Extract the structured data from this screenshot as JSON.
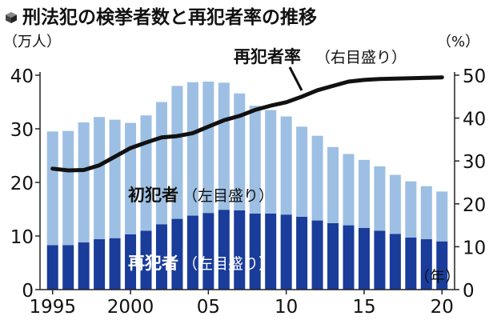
{
  "title": "刑法犯の検挙者数と再犯者率の推移",
  "chart_data": {
    "type": "bar",
    "title": "刑法犯の検挙者数と再犯者率の推移",
    "left_unit": "（万人）",
    "right_unit": "（%）",
    "x_unit": "（年）",
    "x": [
      1995,
      1996,
      1997,
      1998,
      1999,
      2000,
      2001,
      2002,
      2003,
      2004,
      2005,
      2006,
      2007,
      2008,
      2009,
      2010,
      2011,
      2012,
      2013,
      2014,
      2015,
      2016,
      2017,
      2018,
      2019,
      2020
    ],
    "x_tick_labels": [
      {
        "x": 1995,
        "label": "1995"
      },
      {
        "x": 2000,
        "label": "2000"
      },
      {
        "x": 2005,
        "label": "05"
      },
      {
        "x": 2010,
        "label": "10"
      },
      {
        "x": 2015,
        "label": "15"
      },
      {
        "x": 2020,
        "label": "20"
      }
    ],
    "left_axis": {
      "ylim": [
        0,
        40
      ],
      "ticks": [
        0,
        10,
        20,
        30,
        40
      ]
    },
    "right_axis": {
      "ylim": [
        0,
        50
      ],
      "ticks": [
        0,
        10,
        20,
        30,
        40,
        50
      ]
    },
    "stack_total_label": "初犯者（左目盛り）",
    "series": [
      {
        "name": "再犯者（左目盛り）",
        "axis": "left",
        "values": [
          8.3,
          8.3,
          8.8,
          9.4,
          9.6,
          10.3,
          11.0,
          12.2,
          13.2,
          13.8,
          14.3,
          14.9,
          14.8,
          14.2,
          14.2,
          14.0,
          13.6,
          12.9,
          12.4,
          12.0,
          11.5,
          11.0,
          10.4,
          9.7,
          9.4,
          9.0
        ],
        "color": "#1a3c9a"
      },
      {
        "name": "初犯者（左目盛り）",
        "axis": "left",
        "values": [
          21.2,
          21.3,
          22.4,
          22.8,
          22.1,
          20.8,
          21.5,
          22.8,
          24.8,
          24.9,
          24.5,
          23.7,
          21.8,
          20.1,
          19.3,
          18.3,
          16.8,
          15.8,
          14.2,
          13.3,
          12.7,
          12.0,
          11.0,
          10.5,
          9.9,
          9.3
        ],
        "color": "#9dbfe3"
      },
      {
        "name": "再犯者率（右目盛り）",
        "type": "line",
        "axis": "right",
        "values": [
          28.2,
          27.8,
          27.9,
          29.0,
          31.0,
          33.0,
          34.3,
          35.5,
          35.8,
          36.5,
          38.0,
          39.5,
          40.5,
          41.9,
          42.9,
          43.7,
          45.0,
          46.5,
          47.5,
          48.5,
          48.9,
          49.1,
          49.2,
          49.3,
          49.4,
          49.5
        ],
        "color": "#111111"
      }
    ],
    "annotations": [
      {
        "text": "再犯者率",
        "paren": "（右目盛り）"
      },
      {
        "text": "初犯者",
        "paren": "（左目盛り）"
      },
      {
        "text": "再犯者",
        "paren": "（左目盛り）"
      }
    ],
    "grid": false,
    "legend": "none"
  }
}
